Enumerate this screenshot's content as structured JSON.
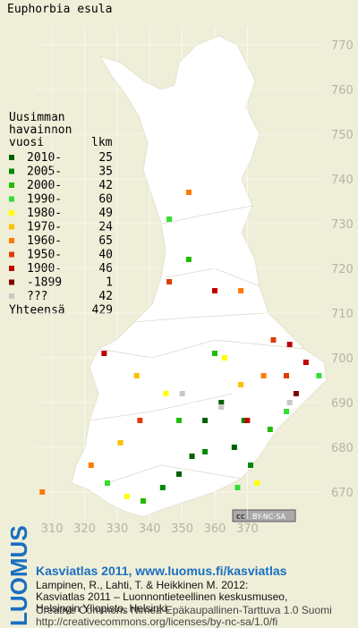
{
  "chart_data": {
    "type": "grid-map",
    "title": "Euphorbia esula",
    "legend_heading": [
      "Uusimman",
      "havainnon",
      "vuosi"
    ],
    "count_heading": "lkm",
    "xlim": [
      294,
      404
    ],
    "ylim": [
      664,
      780
    ],
    "xticks": [
      310,
      320,
      330,
      340,
      350,
      360,
      370
    ],
    "yticks": [
      670,
      680,
      690,
      700,
      710,
      720,
      730,
      740,
      750,
      760,
      770
    ],
    "grid": true,
    "series": [
      {
        "name": "2010-",
        "count": 25,
        "color": "#006000",
        "squares": [
          [
            357,
            686
          ],
          [
            366,
            680
          ],
          [
            349,
            674
          ],
          [
            353,
            678
          ],
          [
            362,
            690
          ]
        ]
      },
      {
        "name": "2005-",
        "count": 35,
        "color": "#008a00",
        "squares": [
          [
            371,
            676
          ],
          [
            344,
            671
          ],
          [
            357,
            679
          ],
          [
            369,
            686
          ]
        ]
      },
      {
        "name": "2000-",
        "count": 42,
        "color": "#22bb00",
        "squares": [
          [
            352,
            722
          ],
          [
            360,
            701
          ],
          [
            377,
            684
          ],
          [
            338,
            668
          ],
          [
            349,
            686
          ]
        ]
      },
      {
        "name": "1990-",
        "count": 60,
        "color": "#33dd33",
        "squares": [
          [
            346,
            731
          ],
          [
            392,
            696
          ],
          [
            382,
            688
          ],
          [
            367,
            671
          ],
          [
            327,
            672
          ]
        ]
      },
      {
        "name": "1980-",
        "count": 49,
        "color": "#ffff00",
        "squares": [
          [
            345,
            692
          ],
          [
            363,
            700
          ],
          [
            333,
            669
          ],
          [
            373,
            672
          ]
        ]
      },
      {
        "name": "1970-",
        "count": 24,
        "color": "#ffc000",
        "squares": [
          [
            336,
            696
          ],
          [
            331,
            681
          ],
          [
            368,
            694
          ]
        ]
      },
      {
        "name": "1960-",
        "count": 65,
        "color": "#ff7a00",
        "squares": [
          [
            352,
            737
          ],
          [
            368,
            715
          ],
          [
            307,
            670
          ],
          [
            322,
            676
          ],
          [
            375,
            696
          ]
        ]
      },
      {
        "name": "1950-",
        "count": 40,
        "color": "#e03c00",
        "squares": [
          [
            346,
            717
          ],
          [
            378,
            704
          ],
          [
            382,
            696
          ],
          [
            337,
            686
          ]
        ]
      },
      {
        "name": "1900-",
        "count": 46,
        "color": "#c00000",
        "squares": [
          [
            383,
            703
          ],
          [
            326,
            701
          ],
          [
            388,
            699
          ],
          [
            360,
            715
          ],
          [
            370,
            686
          ]
        ]
      },
      {
        "name": "-1899",
        "count": 1,
        "color": "#800000",
        "squares": [
          [
            385,
            692
          ]
        ]
      },
      {
        "name": "???",
        "count": 42,
        "color": "#c8c8c8",
        "squares": [
          [
            383,
            690
          ],
          [
            362,
            689
          ],
          [
            350,
            692
          ]
        ]
      }
    ],
    "total_label": "Yhteensä",
    "total": 429,
    "license_badge": [
      "cc",
      "BY-NC-SA"
    ]
  },
  "footer": {
    "logo": "LUOMUS",
    "link": "Kasviatlas 2011, www.luomus.fi/kasviatlas",
    "citation": [
      "Lampinen, R., Lahti, T. & Heikkinen M. 2012:",
      "Kasviatlas 2011 – Luonnontieteellinen keskusmuseo,",
      "Helsingin Yliopisto, Helsinki."
    ],
    "license": [
      "Creative Commons Nimeä-Epäkaupallinen-Tarttuva 1.0 Suomi",
      "http://creativecommons.org/licenses/by-nc-sa/1.0/fi"
    ]
  }
}
